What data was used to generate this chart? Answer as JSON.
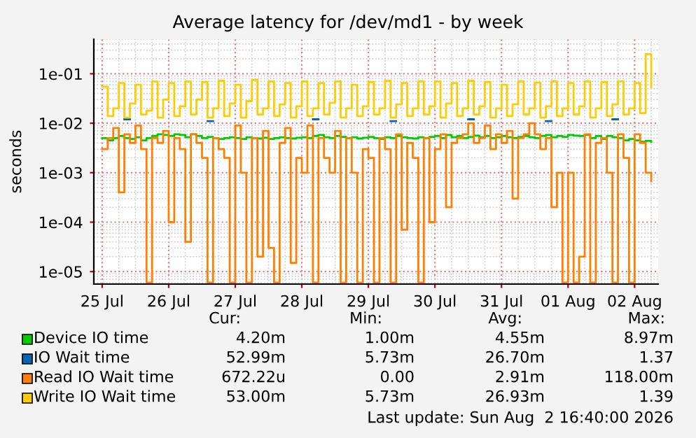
{
  "chart_data": {
    "type": "step",
    "title": "Average latency for /dev/md1 - by week",
    "ylabel": "seconds",
    "x": [
      "2026-07-25T00:00",
      "2026-07-25T02:00",
      "2026-07-25T04:00",
      "2026-07-25T06:00",
      "2026-07-25T08:00",
      "2026-07-25T10:00",
      "2026-07-25T12:00",
      "2026-07-25T14:00",
      "2026-07-25T16:00",
      "2026-07-25T18:00",
      "2026-07-25T20:00",
      "2026-07-25T22:00",
      "2026-07-26T00:00",
      "2026-07-26T02:00",
      "2026-07-26T04:00",
      "2026-07-26T06:00",
      "2026-07-26T08:00",
      "2026-07-26T10:00",
      "2026-07-26T12:00",
      "2026-07-26T14:00",
      "2026-07-26T16:00",
      "2026-07-26T18:00",
      "2026-07-26T20:00",
      "2026-07-26T22:00",
      "2026-07-27T00:00",
      "2026-07-27T02:00",
      "2026-07-27T04:00",
      "2026-07-27T06:00",
      "2026-07-27T08:00",
      "2026-07-27T10:00",
      "2026-07-27T12:00",
      "2026-07-27T14:00",
      "2026-07-27T16:00",
      "2026-07-27T18:00",
      "2026-07-27T20:00",
      "2026-07-27T22:00",
      "2026-07-28T00:00",
      "2026-07-28T02:00",
      "2026-07-28T04:00",
      "2026-07-28T06:00",
      "2026-07-28T08:00",
      "2026-07-28T10:00",
      "2026-07-28T12:00",
      "2026-07-28T14:00",
      "2026-07-28T16:00",
      "2026-07-28T18:00",
      "2026-07-28T20:00",
      "2026-07-28T22:00",
      "2026-07-29T00:00",
      "2026-07-29T02:00",
      "2026-07-29T04:00",
      "2026-07-29T06:00",
      "2026-07-29T08:00",
      "2026-07-29T10:00",
      "2026-07-29T12:00",
      "2026-07-29T14:00",
      "2026-07-29T16:00",
      "2026-07-29T18:00",
      "2026-07-29T20:00",
      "2026-07-29T22:00",
      "2026-07-30T00:00",
      "2026-07-30T02:00",
      "2026-07-30T04:00",
      "2026-07-30T06:00",
      "2026-07-30T08:00",
      "2026-07-30T10:00",
      "2026-07-30T12:00",
      "2026-07-30T14:00",
      "2026-07-30T16:00",
      "2026-07-30T18:00",
      "2026-07-30T20:00",
      "2026-07-30T22:00",
      "2026-07-31T00:00",
      "2026-07-31T02:00",
      "2026-07-31T04:00",
      "2026-07-31T06:00",
      "2026-07-31T08:00",
      "2026-07-31T10:00",
      "2026-07-31T12:00",
      "2026-07-31T14:00",
      "2026-07-31T16:00",
      "2026-07-31T18:00",
      "2026-07-31T20:00",
      "2026-07-31T22:00",
      "2026-08-01T00:00",
      "2026-08-01T02:00",
      "2026-08-01T04:00",
      "2026-08-01T06:00",
      "2026-08-01T08:00",
      "2026-08-01T10:00",
      "2026-08-01T12:00",
      "2026-08-01T14:00",
      "2026-08-01T16:00",
      "2026-08-01T18:00",
      "2026-08-01T20:00",
      "2026-08-01T22:00",
      "2026-08-02T00:00",
      "2026-08-02T02:00",
      "2026-08-02T04:00",
      "2026-08-02T06:00"
    ],
    "series": [
      {
        "name": "Device IO time",
        "color": "#00cc00",
        "values": [
          0.005,
          0.0045,
          0.005,
          0.0055,
          0.005,
          0.0048,
          0.0052,
          0.0045,
          0.005,
          0.0055,
          0.006,
          0.0058,
          0.0055,
          0.006,
          0.0058,
          0.0052,
          0.006,
          0.0055,
          0.005,
          0.0053,
          0.005,
          0.0048,
          0.005,
          0.0052,
          0.005,
          0.0048,
          0.0052,
          0.005,
          0.0049,
          0.0051,
          0.0048,
          0.005,
          0.0052,
          0.005,
          0.0049,
          0.0051,
          0.0052,
          0.005,
          0.0055,
          0.0058,
          0.0052,
          0.005,
          0.0055,
          0.0053,
          0.005,
          0.0052,
          0.0049,
          0.0051,
          0.0053,
          0.005,
          0.0048,
          0.0052,
          0.005,
          0.0055,
          0.0052,
          0.005,
          0.0049,
          0.0052,
          0.005,
          0.0053,
          0.0055,
          0.005,
          0.0058,
          0.0052,
          0.0055,
          0.005,
          0.0053,
          0.0056,
          0.0052,
          0.0055,
          0.005,
          0.0052,
          0.0055,
          0.0052,
          0.005,
          0.0053,
          0.0055,
          0.0052,
          0.005,
          0.0055,
          0.0058,
          0.0052,
          0.0055,
          0.0053,
          0.0058,
          0.0056,
          0.0055,
          0.0058,
          0.005,
          0.0055,
          0.0048,
          0.0055,
          0.0052,
          0.005,
          0.0045,
          0.0048,
          0.0045,
          0.0042,
          0.0044,
          0.0042
        ]
      },
      {
        "name": "IO Wait time",
        "color": "#0066b3",
        "type": "line",
        "values": [
          null,
          null,
          null,
          null,
          0.012,
          0.012,
          null,
          null,
          null,
          null,
          null,
          null,
          null,
          null,
          null,
          null,
          null,
          null,
          null,
          0.011,
          0.011,
          null,
          null,
          null,
          null,
          null,
          null,
          null,
          null,
          null,
          null,
          null,
          null,
          null,
          null,
          null,
          null,
          null,
          0.012,
          0.012,
          null,
          null,
          null,
          null,
          null,
          null,
          null,
          null,
          null,
          null,
          null,
          null,
          0.011,
          0.011,
          null,
          null,
          null,
          null,
          null,
          null,
          null,
          null,
          null,
          null,
          null,
          null,
          0.012,
          0.012,
          null,
          null,
          null,
          null,
          null,
          null,
          null,
          null,
          null,
          null,
          null,
          null,
          0.011,
          0.011,
          null,
          null,
          null,
          null,
          null,
          null,
          null,
          null,
          null,
          null,
          0.012,
          0.012,
          null,
          null,
          null,
          null,
          null,
          null
        ]
      },
      {
        "name": "Read IO Wait time",
        "color": "#ff8000",
        "values": [
          0.003,
          0.005,
          0.008,
          0.0004,
          0.006,
          0.004,
          0.009,
          0.003,
          6e-06,
          0.005,
          0.004,
          0.007,
          0.0001,
          0.005,
          0.003,
          4e-05,
          0.006,
          0.004,
          0.002,
          6e-06,
          0.005,
          0.003,
          0.002,
          6e-06,
          0.009,
          0.001,
          6e-06,
          0.005,
          2e-05,
          0.007,
          3e-05,
          6e-06,
          0.004,
          0.008,
          1.5e-05,
          0.002,
          0.001,
          0.009,
          6e-06,
          0.005,
          0.002,
          0.001,
          0.007,
          6e-06,
          0.005,
          0.001,
          6e-06,
          0.003,
          0.002,
          6e-06,
          0.005,
          0.003,
          6e-06,
          0.006,
          7e-05,
          0.004,
          0.002,
          6e-06,
          0.005,
          0.0001,
          0.003,
          0.006,
          0.0002,
          0.004,
          0.005,
          0.006,
          0.01,
          0.004,
          0.005,
          0.009,
          0.003,
          0.006,
          0.004,
          0.007,
          0.0003,
          0.005,
          0.006,
          0.01,
          0.006,
          0.003,
          0.005,
          0.0002,
          0.001,
          6e-06,
          0.001,
          6e-06,
          2e-05,
          0.006,
          6e-06,
          0.004,
          0.005,
          0.001,
          6e-06,
          0.006,
          0.002,
          6e-06,
          0.006,
          0.004,
          0.001,
          0.00067
        ]
      },
      {
        "name": "Write IO Wait time",
        "color": "#ffcc00",
        "values": [
          0.055,
          0.014,
          0.02,
          0.065,
          0.013,
          0.025,
          0.06,
          0.015,
          0.018,
          0.07,
          0.013,
          0.03,
          0.065,
          0.014,
          0.022,
          0.07,
          0.015,
          0.03,
          0.068,
          0.013,
          0.02,
          0.072,
          0.014,
          0.025,
          0.06,
          0.013,
          0.028,
          0.075,
          0.015,
          0.02,
          0.07,
          0.014,
          0.024,
          0.065,
          0.013,
          0.022,
          0.07,
          0.014,
          0.02,
          0.065,
          0.015,
          0.026,
          0.07,
          0.013,
          0.02,
          0.06,
          0.014,
          0.022,
          0.068,
          0.015,
          0.02,
          0.072,
          0.013,
          0.024,
          0.065,
          0.014,
          0.02,
          0.07,
          0.015,
          0.022,
          0.07,
          0.013,
          0.025,
          0.065,
          0.014,
          0.02,
          0.072,
          0.015,
          0.022,
          0.068,
          0.013,
          0.02,
          0.06,
          0.014,
          0.024,
          0.07,
          0.015,
          0.02,
          0.066,
          0.013,
          0.022,
          0.07,
          0.014,
          0.02,
          0.065,
          0.015,
          0.022,
          0.07,
          0.013,
          0.02,
          0.068,
          0.014,
          0.024,
          0.07,
          0.015,
          0.02,
          0.065,
          0.016,
          0.25,
          0.053
        ]
      }
    ],
    "log": true,
    "ylim": [
      5.6e-06,
      0.5
    ],
    "yticks": [
      {
        "value": 1e-05,
        "label": "1e-05"
      },
      {
        "value": 0.0001,
        "label": "1e-04"
      },
      {
        "value": 0.001,
        "label": "1e-03"
      },
      {
        "value": 0.01,
        "label": "1e-02"
      },
      {
        "value": 0.1,
        "label": "1e-01"
      }
    ],
    "xlim": [
      "2026-07-24T21:00",
      "2026-08-02T08:30"
    ],
    "xticks": [
      {
        "value": "2026-07-25",
        "label": "25 Jul"
      },
      {
        "value": "2026-07-26",
        "label": "26 Jul"
      },
      {
        "value": "2026-07-27",
        "label": "27 Jul"
      },
      {
        "value": "2026-07-28",
        "label": "28 Jul"
      },
      {
        "value": "2026-07-29",
        "label": "29 Jul"
      },
      {
        "value": "2026-07-30",
        "label": "30 Jul"
      },
      {
        "value": "2026-07-31",
        "label": "31 Jul"
      },
      {
        "value": "2026-08-01",
        "label": "01 Aug"
      },
      {
        "value": "2026-08-02",
        "label": "02 Aug"
      }
    ],
    "grid": true,
    "legend": "bottom",
    "annotations": [
      "Cur:",
      "Min:",
      "Avg:",
      "Max:",
      "4.20m",
      "1.00m",
      "4.55m",
      "8.97m",
      "52.99m",
      "5.73m",
      "26.70m",
      "1.37",
      "672.22u",
      "0.00",
      "2.91m",
      "118.00m",
      "53.00m",
      "5.73m",
      "26.93m",
      "1.39",
      "Last update: Sun Aug  2 16:40:00 2026"
    ]
  }
}
